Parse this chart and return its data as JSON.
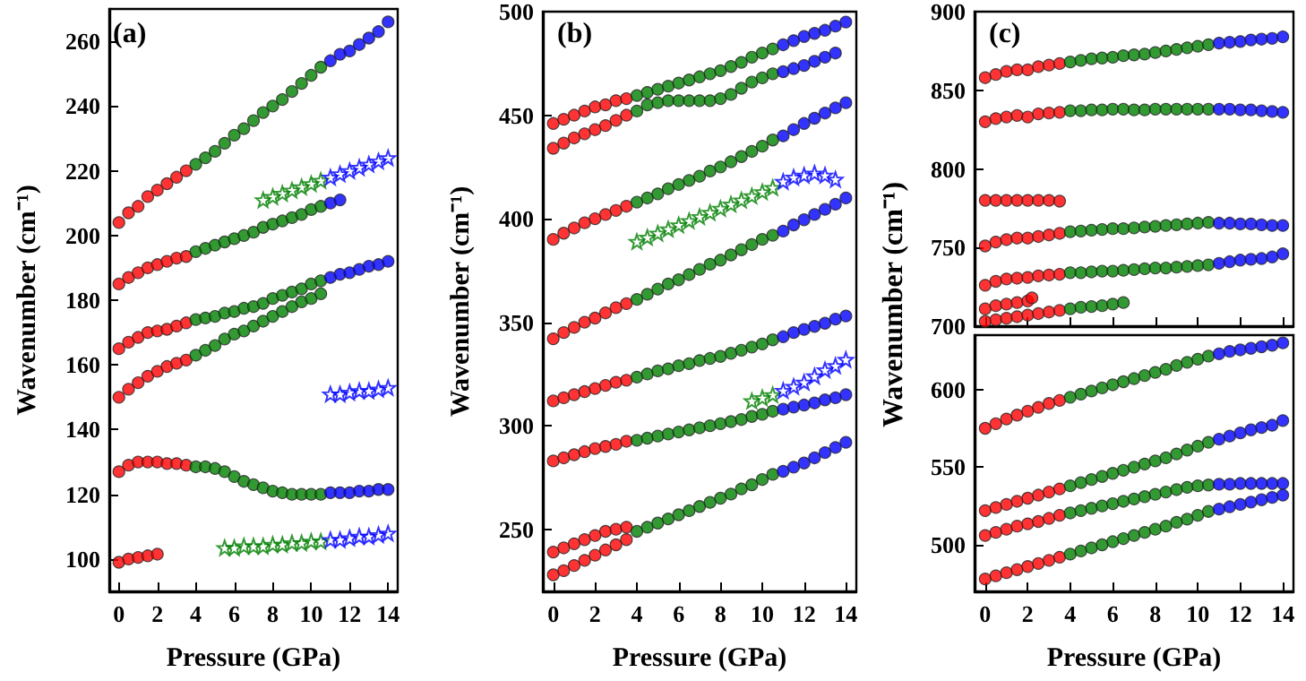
{
  "chart_data": [
    {
      "type": "scatter",
      "annotations": [
        "(a)"
      ],
      "xlabel": "Pressure (GPa)",
      "ylabel": "Wavenumber (cm⁻¹)",
      "xlim": [
        -0.5,
        14.5
      ],
      "xticks": [
        0,
        2,
        4,
        6,
        8,
        10,
        12,
        14
      ],
      "ylim": [
        90,
        270
      ],
      "yticks": [
        100,
        120,
        140,
        160,
        180,
        200,
        220,
        240,
        260
      ],
      "marker": "circle",
      "series": [
        {
          "color": "#ff0000",
          "x": [
            0,
            0.5,
            1,
            1.5,
            2,
            2.5,
            3,
            3.5
          ],
          "values": [
            204,
            207,
            209,
            212,
            214,
            216,
            218,
            220
          ]
        },
        {
          "color": "#008000",
          "x": [
            4,
            4.5,
            5,
            5.5,
            6,
            6.5,
            7,
            7.5,
            8,
            8.5,
            9,
            9.5,
            10,
            10.5
          ],
          "values": [
            222,
            224,
            226,
            228.5,
            231,
            233,
            235.5,
            238,
            240,
            242,
            244.5,
            247,
            249.5,
            252
          ]
        },
        {
          "color": "#0000ff",
          "x": [
            11,
            11.5,
            12,
            12.5,
            13,
            13.5,
            14
          ],
          "values": [
            254,
            256,
            257,
            259,
            261,
            263,
            266
          ]
        },
        {
          "color": "#ff0000",
          "x": [
            0,
            0.5,
            1,
            1.5,
            2,
            2.5,
            3,
            3.5
          ],
          "values": [
            185,
            187,
            188.5,
            190,
            191,
            192,
            193,
            193.5
          ]
        },
        {
          "color": "#008000",
          "x": [
            4,
            4.5,
            5,
            5.5,
            6,
            6.5,
            7,
            7.5,
            8,
            8.5,
            9,
            9.5,
            10,
            10.5
          ],
          "values": [
            195,
            196,
            197,
            198,
            199,
            200,
            201,
            202.5,
            203.5,
            204.5,
            205.5,
            206.5,
            208,
            209
          ]
        },
        {
          "color": "#0000ff",
          "x": [
            11,
            11.5
          ],
          "values": [
            210,
            211
          ]
        },
        {
          "color": "#ff0000",
          "x": [
            0,
            0.5,
            1,
            1.5,
            2,
            2.5,
            3,
            3.5
          ],
          "values": [
            165,
            167,
            168.5,
            170,
            170.5,
            171,
            172,
            173
          ]
        },
        {
          "color": "#008000",
          "x": [
            4,
            4.5,
            5,
            5.5,
            6,
            6.5,
            7,
            7.5,
            8,
            8.5,
            9,
            9.5,
            10,
            10.5
          ],
          "values": [
            174,
            174.5,
            175,
            176,
            176.5,
            177.5,
            178,
            179,
            180.5,
            181.5,
            182.5,
            183.5,
            185,
            186
          ]
        },
        {
          "color": "#0000ff",
          "x": [
            11,
            11.5,
            12,
            12.5,
            13,
            13.5,
            14
          ],
          "values": [
            187,
            188,
            188.5,
            189.5,
            190.5,
            191,
            192
          ]
        },
        {
          "color": "#ff0000",
          "x": [
            0,
            0.5,
            1,
            1.5,
            2,
            2.5,
            3,
            3.5
          ],
          "values": [
            150,
            152.5,
            154.5,
            156.5,
            158,
            159.5,
            160.5,
            161.5
          ]
        },
        {
          "color": "#008000",
          "x": [
            4,
            4.5,
            5,
            5.5,
            6,
            6.5,
            7,
            7.5,
            8,
            8.5,
            9,
            9.5,
            10,
            10.5
          ],
          "values": [
            163,
            164.5,
            166,
            168,
            169.5,
            170.5,
            172,
            173.5,
            175,
            176.5,
            178,
            179.5,
            180.5,
            182
          ]
        },
        {
          "color": "#ff0000",
          "x": [
            0,
            0.5,
            1,
            1.5,
            2,
            2.5,
            3,
            3.5
          ],
          "values": [
            127,
            129,
            130,
            130,
            130,
            129.5,
            129.5,
            129
          ]
        },
        {
          "color": "#008000",
          "x": [
            4,
            4.5,
            5,
            5.5,
            6,
            6.5,
            7,
            7.5,
            8,
            8.5,
            9,
            9.5,
            10,
            10.5
          ],
          "values": [
            128.5,
            128.5,
            128,
            127,
            125.5,
            124,
            123,
            122,
            121,
            120.5,
            120,
            120,
            120,
            120
          ]
        },
        {
          "color": "#0000ff",
          "x": [
            11,
            11.5,
            12,
            12.5,
            13,
            13.5,
            14
          ],
          "values": [
            120.5,
            120.5,
            120.5,
            121,
            121,
            121.5,
            121.5
          ]
        },
        {
          "color": "#ff0000",
          "x": [
            0,
            0.5,
            1,
            1.5,
            2
          ],
          "values": [
            99,
            100,
            100.5,
            101,
            101.5
          ]
        },
        {
          "color": "#008000",
          "marker": "star",
          "x": [
            7.5,
            8,
            8.5,
            9,
            9.5,
            10,
            10.5
          ],
          "values": [
            211,
            212,
            213,
            214,
            215,
            216,
            217
          ]
        },
        {
          "color": "#0000ff",
          "marker": "star",
          "x": [
            11,
            11.5,
            12,
            12.5,
            13,
            13.5,
            14
          ],
          "values": [
            218,
            219,
            220,
            221,
            222,
            223,
            224
          ]
        },
        {
          "color": "#008000",
          "marker": "star",
          "x": [
            5.5,
            6,
            6.5,
            7,
            7.5,
            8,
            8.5,
            9,
            9.5,
            10,
            10.5
          ],
          "values": [
            103.5,
            103.5,
            104,
            104,
            104,
            104.5,
            104.5,
            105,
            105,
            105.5,
            105.5
          ]
        },
        {
          "color": "#0000ff",
          "marker": "star",
          "x": [
            11,
            11.5,
            12,
            12.5,
            13,
            13.5,
            14
          ],
          "values": [
            106,
            106,
            106.5,
            107,
            107,
            107.5,
            108
          ]
        },
        {
          "color": "#0000ff",
          "marker": "star",
          "x": [
            11,
            11.5,
            12,
            12.5,
            13,
            13.5,
            14
          ],
          "values": [
            151,
            151,
            151.5,
            152,
            152,
            152.5,
            153
          ]
        }
      ]
    },
    {
      "type": "scatter",
      "annotations": [
        "(b)"
      ],
      "xlabel": "Pressure (GPa)",
      "ylabel": "Wavenumber (cm⁻¹)",
      "xlim": [
        -0.5,
        14.5
      ],
      "xticks": [
        0,
        2,
        4,
        6,
        8,
        10,
        12,
        14
      ],
      "ylim": [
        220,
        500
      ],
      "yticks": [
        250,
        300,
        350,
        400,
        450,
        500
      ],
      "marker": "circle",
      "series": [
        {
          "color": "#ff0000",
          "x": [
            0,
            0.5,
            1,
            1.5,
            2,
            2.5,
            3,
            3.5
          ],
          "values": [
            446,
            448,
            450,
            452,
            454,
            455,
            457,
            458
          ]
        },
        {
          "color": "#008000",
          "x": [
            4,
            4.5,
            5,
            5.5,
            6,
            6.5,
            7,
            7.5,
            8,
            8.5,
            9,
            9.5,
            10,
            10.5
          ],
          "values": [
            459.5,
            461,
            462.5,
            464,
            465.5,
            467,
            468.5,
            470,
            471.5,
            473.5,
            475.5,
            478,
            480,
            482
          ]
        },
        {
          "color": "#0000ff",
          "x": [
            11,
            11.5,
            12,
            12.5,
            13,
            13.5,
            14
          ],
          "values": [
            484,
            486,
            488,
            489.5,
            491,
            493,
            495
          ]
        },
        {
          "color": "#ff0000",
          "x": [
            0,
            0.5,
            1,
            1.5,
            2,
            2.5,
            3,
            3.5
          ],
          "values": [
            434,
            436.5,
            439,
            441,
            443,
            445,
            447.5,
            450
          ]
        },
        {
          "color": "#008000",
          "x": [
            4,
            4.5,
            5,
            5.5,
            6,
            6.5,
            7,
            7.5,
            8,
            8.5,
            9,
            9.5,
            10,
            10.5
          ],
          "values": [
            452,
            455,
            456,
            457,
            457,
            457,
            457,
            457,
            458,
            460,
            463,
            466,
            468,
            470
          ]
        },
        {
          "color": "#0000ff",
          "x": [
            11,
            11.5,
            12,
            12.5,
            13,
            13.5
          ],
          "values": [
            471,
            472.5,
            474,
            476,
            478,
            480
          ]
        },
        {
          "color": "#ff0000",
          "x": [
            0,
            0.5,
            1,
            1.5,
            2,
            2.5,
            3,
            3.5
          ],
          "values": [
            390,
            393,
            395.5,
            398,
            400,
            402,
            404,
            406
          ]
        },
        {
          "color": "#008000",
          "x": [
            4,
            4.5,
            5,
            5.5,
            6,
            6.5,
            7,
            7.5,
            8,
            8.5,
            9,
            9.5,
            10,
            10.5
          ],
          "values": [
            408,
            410,
            412,
            414.5,
            416.5,
            418.5,
            420.5,
            423,
            425,
            427.5,
            430,
            432.5,
            435,
            438
          ]
        },
        {
          "color": "#0000ff",
          "x": [
            11,
            11.5,
            12,
            12.5,
            13,
            13.5,
            14
          ],
          "values": [
            440,
            443,
            446,
            448.5,
            451,
            453.5,
            456
          ]
        },
        {
          "color": "#ff0000",
          "x": [
            0,
            0.5,
            1,
            1.5,
            2,
            2.5,
            3,
            3.5
          ],
          "values": [
            342,
            345,
            347.5,
            350,
            352,
            354.5,
            357,
            359
          ]
        },
        {
          "color": "#008000",
          "x": [
            4,
            4.5,
            5,
            5.5,
            6,
            6.5,
            7,
            7.5,
            8,
            8.5,
            9,
            9.5,
            10,
            10.5
          ],
          "values": [
            361,
            363.5,
            366,
            368.5,
            370.5,
            373,
            375.5,
            378,
            380,
            382.5,
            385,
            387.5,
            390,
            392
          ]
        },
        {
          "color": "#0000ff",
          "x": [
            11,
            11.5,
            12,
            12.5,
            13,
            13.5,
            14
          ],
          "values": [
            394,
            397,
            399.5,
            402,
            404.5,
            407,
            410
          ]
        },
        {
          "color": "#ff0000",
          "x": [
            0,
            0.5,
            1,
            1.5,
            2,
            2.5,
            3,
            3.5
          ],
          "values": [
            312,
            313.5,
            315,
            316.5,
            318,
            319.5,
            321,
            322
          ]
        },
        {
          "color": "#008000",
          "x": [
            4,
            4.5,
            5,
            5.5,
            6,
            6.5,
            7,
            7.5,
            8,
            8.5,
            9,
            9.5,
            10,
            10.5
          ],
          "values": [
            323.5,
            325,
            326.5,
            327.5,
            329,
            330,
            331.5,
            332.5,
            333.5,
            335,
            336.5,
            338,
            339.5,
            341.5
          ]
        },
        {
          "color": "#0000ff",
          "x": [
            11,
            11.5,
            12,
            12.5,
            13,
            13.5,
            14
          ],
          "values": [
            343,
            345,
            346.5,
            348,
            349.5,
            351.5,
            353
          ]
        },
        {
          "color": "#ff0000",
          "x": [
            0,
            0.5,
            1,
            1.5,
            2,
            2.5,
            3,
            3.5
          ],
          "values": [
            283,
            284.5,
            286,
            287.5,
            289,
            290,
            291,
            292.5
          ]
        },
        {
          "color": "#008000",
          "x": [
            4,
            4.5,
            5,
            5.5,
            6,
            6.5,
            7,
            7.5,
            8,
            8.5,
            9,
            9.5,
            10,
            10.5
          ],
          "values": [
            293,
            294,
            295,
            296,
            297,
            298,
            299,
            300,
            301,
            302,
            303,
            304.5,
            305.5,
            307
          ]
        },
        {
          "color": "#0000ff",
          "x": [
            11,
            11.5,
            12,
            12.5,
            13,
            13.5,
            14
          ],
          "values": [
            308,
            309,
            310,
            311,
            312.5,
            313.5,
            315
          ]
        },
        {
          "color": "#ff0000",
          "x": [
            0,
            0.5,
            1,
            1.5,
            2,
            2.5,
            3,
            3.5
          ],
          "values": [
            239,
            241,
            243,
            245,
            247,
            249,
            250,
            251
          ]
        },
        {
          "color": "#ff0000",
          "x": [
            0,
            0.5,
            1,
            1.5,
            2,
            2.5,
            3,
            3.5
          ],
          "values": [
            228,
            230,
            232.5,
            235,
            237.5,
            240,
            242.5,
            245
          ]
        },
        {
          "color": "#008000",
          "x": [
            4,
            4.5,
            5,
            5.5,
            6,
            6.5,
            7,
            7.5,
            8,
            8.5,
            9,
            9.5,
            10,
            10.5
          ],
          "values": [
            249,
            251,
            253,
            255,
            257,
            259,
            261,
            263,
            265,
            267,
            269.5,
            271.5,
            274,
            276.5
          ]
        },
        {
          "color": "#0000ff",
          "x": [
            11,
            11.5,
            12,
            12.5,
            13,
            13.5,
            14
          ],
          "values": [
            278,
            280,
            282,
            284.5,
            287,
            289.5,
            292
          ]
        },
        {
          "color": "#008000",
          "marker": "star",
          "x": [
            4,
            4.5,
            5,
            5.5,
            6,
            6.5,
            7,
            7.5,
            8,
            8.5,
            9,
            9.5,
            10,
            10.5
          ],
          "values": [
            389,
            391,
            393,
            395,
            397,
            399,
            401,
            403,
            405,
            407,
            409,
            411,
            413,
            415
          ]
        },
        {
          "color": "#0000ff",
          "marker": "star",
          "x": [
            11,
            11.5,
            12,
            12.5,
            13,
            13.5
          ],
          "values": [
            418,
            420,
            421,
            422,
            421,
            419
          ]
        },
        {
          "color": "#008000",
          "marker": "star",
          "x": [
            9.5,
            10,
            10.5
          ],
          "values": [
            312,
            313.5,
            315
          ]
        },
        {
          "color": "#0000ff",
          "marker": "star",
          "x": [
            11,
            11.5,
            12,
            12.5,
            13,
            13.5,
            14
          ],
          "values": [
            317,
            319,
            321,
            324,
            327,
            329,
            332
          ]
        }
      ]
    },
    {
      "type": "scatter",
      "annotations": [
        "(c)"
      ],
      "ylabel": "Wavenumber (cm⁻¹)",
      "xlim": [
        -0.5,
        14.5
      ],
      "xticks": [
        0,
        2,
        4,
        6,
        8,
        10,
        12,
        14
      ],
      "ylim": [
        700,
        900
      ],
      "yticks": [
        700,
        750,
        800,
        850,
        900
      ],
      "tick_labels": "y",
      "marker": "circle",
      "series": [
        {
          "color": "#ff0000",
          "x": [
            0,
            0.5,
            1,
            1.5,
            2,
            2.5,
            3,
            3.5
          ],
          "values": [
            858,
            860,
            862,
            863,
            863,
            865,
            866,
            867
          ]
        },
        {
          "color": "#008000",
          "x": [
            4,
            4.5,
            5,
            5.5,
            6,
            6.5,
            7,
            7.5,
            8,
            8.5,
            9,
            9.5,
            10,
            10.5
          ],
          "values": [
            868,
            869,
            870,
            870.5,
            871,
            872,
            872.5,
            873,
            874,
            875,
            876,
            877,
            878,
            879
          ]
        },
        {
          "color": "#0000ff",
          "x": [
            11,
            11.5,
            12,
            12.5,
            13,
            13.5,
            14
          ],
          "values": [
            880,
            880.5,
            881,
            882,
            882.5,
            883,
            884
          ]
        },
        {
          "color": "#ff0000",
          "x": [
            0,
            0.5,
            1,
            1.5,
            2,
            2.5,
            3,
            3.5
          ],
          "values": [
            830,
            832,
            833,
            834,
            833,
            835,
            835.5,
            836
          ]
        },
        {
          "color": "#008000",
          "x": [
            4,
            4.5,
            5,
            5.5,
            6,
            6.5,
            7,
            7.5,
            8,
            8.5,
            9,
            9.5,
            10,
            10.5
          ],
          "values": [
            837,
            837,
            837.5,
            837.5,
            838,
            838,
            837.5,
            837.5,
            838,
            838,
            838,
            838,
            838,
            838
          ]
        },
        {
          "color": "#0000ff",
          "x": [
            11,
            11.5,
            12,
            12.5,
            13,
            13.5,
            14
          ],
          "values": [
            838,
            838,
            837.5,
            837.5,
            837,
            836.5,
            836
          ]
        },
        {
          "color": "#ff0000",
          "x": [
            0,
            0.5,
            1,
            1.5,
            2,
            2.5,
            3,
            3.5
          ],
          "values": [
            780,
            780,
            780,
            780,
            780,
            780,
            780,
            779.5
          ]
        },
        {
          "color": "#ff0000",
          "x": [
            0,
            0.5,
            1,
            1.5,
            2,
            2.5,
            3,
            3.5
          ],
          "values": [
            751,
            753.5,
            755,
            756,
            756,
            757,
            758,
            759
          ]
        },
        {
          "color": "#008000",
          "x": [
            4,
            4.5,
            5,
            5.5,
            6,
            6.5,
            7,
            7.5,
            8,
            8.5,
            9,
            9.5,
            10,
            10.5
          ],
          "values": [
            760,
            760.5,
            761,
            761.5,
            762,
            762,
            762.5,
            763,
            763.5,
            764,
            764.5,
            765,
            765.5,
            766
          ]
        },
        {
          "color": "#0000ff",
          "x": [
            11,
            11.5,
            12,
            12.5,
            13,
            13.5,
            14
          ],
          "values": [
            765.5,
            765.5,
            765,
            765,
            764.5,
            764,
            764
          ]
        },
        {
          "color": "#ff0000",
          "x": [
            0,
            0.5,
            1,
            1.5,
            2,
            2.5,
            3,
            3.5
          ],
          "values": [
            726,
            728.5,
            730,
            730.5,
            731,
            732,
            732.5,
            733
          ]
        },
        {
          "color": "#008000",
          "x": [
            4,
            4.5,
            5,
            5.5,
            6,
            6.5,
            7,
            7.5,
            8,
            8.5,
            9,
            9.5,
            10,
            10.5
          ],
          "values": [
            734,
            734,
            734.5,
            735,
            735,
            735.5,
            736,
            736.5,
            737,
            737,
            737.5,
            738,
            738.5,
            739
          ]
        },
        {
          "color": "#0000ff",
          "x": [
            11,
            11.5,
            12,
            12.5,
            13,
            13.5,
            14
          ],
          "values": [
            740,
            741,
            742,
            742.5,
            743,
            744,
            746
          ]
        },
        {
          "color": "#ff0000",
          "x": [
            0,
            0.5,
            1,
            1.5,
            2,
            2.2
          ],
          "values": [
            711,
            713,
            714,
            715,
            716,
            718
          ]
        },
        {
          "color": "#ff0000",
          "x": [
            0,
            0.5,
            1,
            1.5,
            2,
            2.5,
            3,
            3.5
          ],
          "values": [
            703,
            704,
            705,
            706,
            707,
            708,
            709,
            710
          ]
        },
        {
          "color": "#008000",
          "x": [
            4,
            4.5,
            5,
            5.5,
            6,
            6.5
          ],
          "values": [
            711,
            712,
            712.5,
            713,
            714,
            715
          ]
        }
      ]
    },
    {
      "type": "scatter",
      "xlabel": "Pressure (GPa)",
      "xlim": [
        -0.5,
        14.5
      ],
      "xticks": [
        0,
        2,
        4,
        6,
        8,
        10,
        12,
        14
      ],
      "ylim": [
        470,
        635
      ],
      "yticks": [
        500,
        550,
        600
      ],
      "marker": "circle",
      "series": [
        {
          "color": "#ff0000",
          "x": [
            0,
            0.5,
            1,
            1.5,
            2,
            2.5,
            3,
            3.5
          ],
          "values": [
            575,
            578,
            581,
            583.5,
            586,
            588.5,
            591,
            593
          ]
        },
        {
          "color": "#008000",
          "x": [
            4,
            4.5,
            5,
            5.5,
            6,
            6.5,
            7,
            7.5,
            8,
            8.5,
            9,
            9.5,
            10,
            10.5
          ],
          "values": [
            595,
            597,
            599,
            601,
            603,
            605,
            607,
            609,
            611,
            613,
            615.5,
            617.5,
            619.5,
            621.5
          ]
        },
        {
          "color": "#0000ff",
          "x": [
            11,
            11.5,
            12,
            12.5,
            13,
            13.5,
            14
          ],
          "values": [
            623,
            624.5,
            625.5,
            626.5,
            627.5,
            628.5,
            630
          ]
        },
        {
          "color": "#ff0000",
          "x": [
            0,
            0.5,
            1,
            1.5,
            2,
            2.5,
            3,
            3.5
          ],
          "values": [
            522,
            524,
            526,
            528,
            530,
            532,
            534,
            536
          ]
        },
        {
          "color": "#008000",
          "x": [
            4,
            4.5,
            5,
            5.5,
            6,
            6.5,
            7,
            7.5,
            8,
            8.5,
            9,
            9.5,
            10,
            10.5
          ],
          "values": [
            538,
            540,
            542,
            544,
            546,
            548,
            550,
            552,
            554,
            556,
            558.5,
            561,
            563.5,
            566
          ]
        },
        {
          "color": "#0000ff",
          "x": [
            11,
            11.5,
            12,
            12.5,
            13,
            13.5,
            14
          ],
          "values": [
            568,
            570,
            572,
            574,
            575.5,
            577,
            580
          ]
        },
        {
          "color": "#ff0000",
          "x": [
            0,
            0.5,
            1,
            1.5,
            2,
            2.5,
            3,
            3.5
          ],
          "values": [
            506,
            508,
            510,
            512,
            513.5,
            515,
            517,
            519
          ]
        },
        {
          "color": "#008000",
          "x": [
            4,
            4.5,
            5,
            5.5,
            6,
            6.5,
            7,
            7.5,
            8,
            8.5,
            9,
            9.5,
            10,
            10.5
          ],
          "values": [
            520.5,
            522,
            523.5,
            525,
            526.5,
            528,
            529.5,
            531,
            532.5,
            534,
            535.5,
            537,
            538,
            538.5
          ]
        },
        {
          "color": "#0000ff",
          "x": [
            11,
            11.5,
            12,
            12.5,
            13,
            13.5,
            14
          ],
          "values": [
            539,
            539,
            539.5,
            539.5,
            539.5,
            539.5,
            539.5
          ]
        },
        {
          "color": "#ff0000",
          "x": [
            0,
            0.5,
            1,
            1.5,
            2,
            2.5,
            3,
            3.5
          ],
          "values": [
            478,
            480,
            482,
            484,
            486,
            488,
            490,
            492
          ]
        },
        {
          "color": "#008000",
          "x": [
            4,
            4.5,
            5,
            5.5,
            6,
            6.5,
            7,
            7.5,
            8,
            8.5,
            9,
            9.5,
            10,
            10.5
          ],
          "values": [
            494,
            496,
            498,
            500,
            502,
            504,
            506,
            508,
            510,
            512,
            514.5,
            516.5,
            519,
            521.5
          ]
        },
        {
          "color": "#0000ff",
          "x": [
            11,
            11.5,
            12,
            12.5,
            13,
            13.5,
            14
          ],
          "values": [
            523,
            524.5,
            526,
            527.5,
            529,
            530.5,
            532
          ]
        }
      ]
    }
  ]
}
